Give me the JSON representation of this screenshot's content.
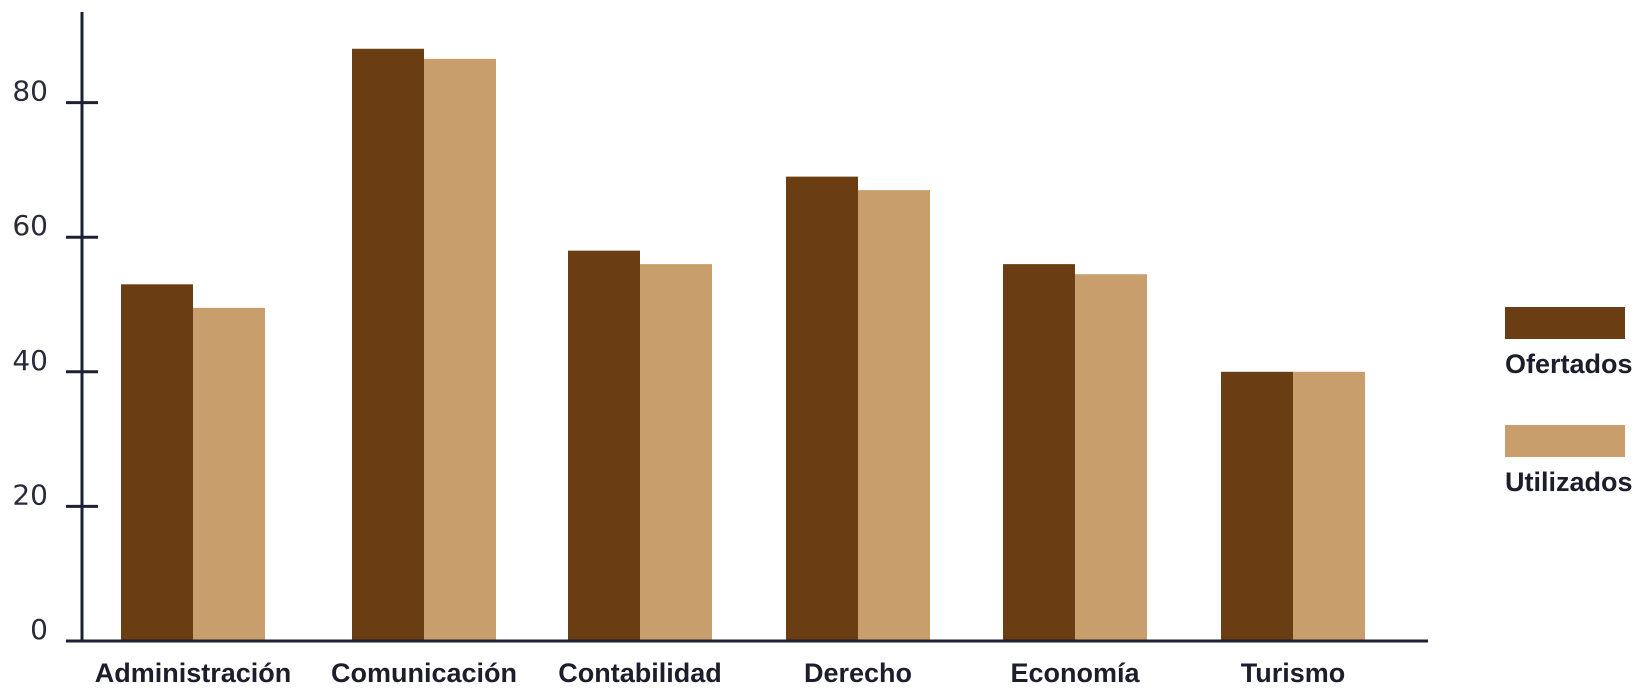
{
  "chart_data": {
    "type": "bar",
    "categories": [
      "Administración",
      "Comunicación",
      "Contabilidad",
      "Derecho",
      "Economía",
      "Turismo"
    ],
    "series": [
      {
        "name": "Ofertados",
        "color": "#6b3d13",
        "values": [
          53,
          88,
          58,
          69,
          56,
          40
        ]
      },
      {
        "name": "Utilizados",
        "color": "#c99e6d",
        "values": [
          49.5,
          86.5,
          56,
          67,
          54.5,
          40
        ]
      }
    ],
    "yticks": [
      0,
      20,
      40,
      60,
      80
    ],
    "ylim": [
      0,
      93
    ],
    "grid": false,
    "legend_position": "right"
  }
}
